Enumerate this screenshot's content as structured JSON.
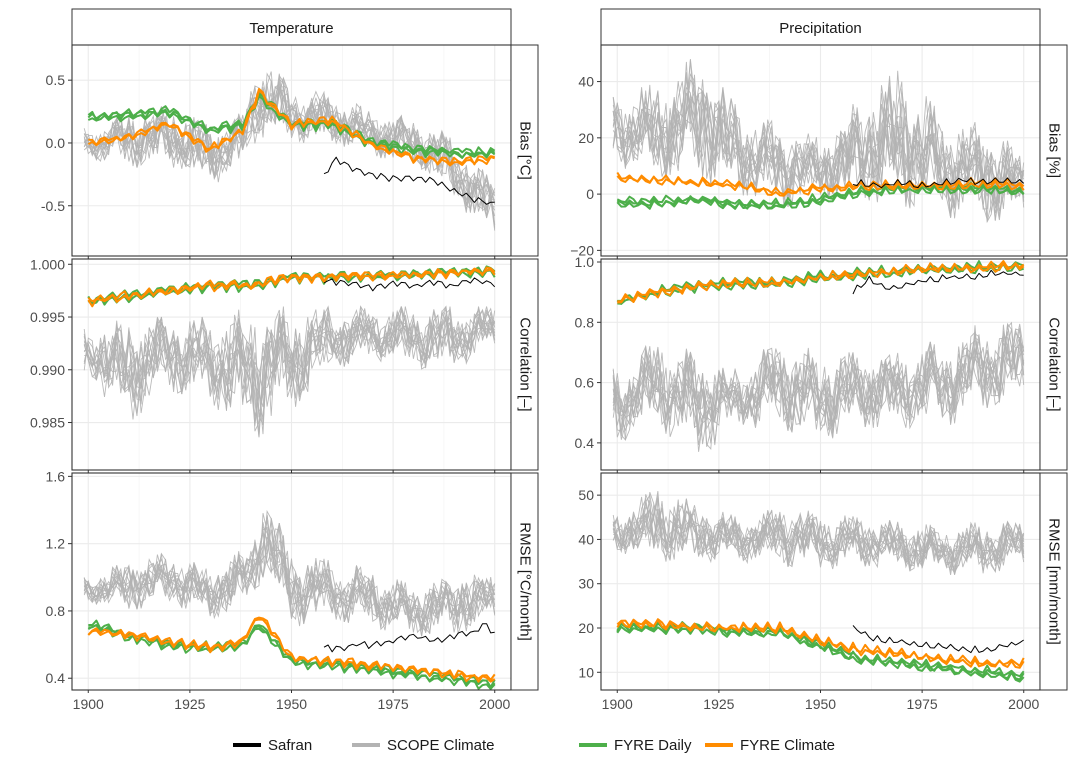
{
  "chart_data": {
    "type": "line",
    "x_ticks": [
      1900,
      1925,
      1950,
      1975,
      2000
    ],
    "x_range": [
      1896,
      2004
    ],
    "column_titles": [
      "Temperature",
      "Precipitation"
    ],
    "legend": {
      "placement": "bottom",
      "entries": [
        {
          "name": "Safran",
          "color": "#000000"
        },
        {
          "name": "SCOPE Climate",
          "color": "#b3b3b3"
        },
        {
          "name": "FYRE Daily",
          "color": "#4daf4a"
        },
        {
          "name": "FYRE Climate",
          "color": "#ff8c00"
        }
      ]
    },
    "grid": true,
    "panels": [
      {
        "column": "Temperature",
        "metric": "Bias [°C]",
        "ylim": [
          -0.9,
          0.78
        ],
        "y_ticks": [
          "0.5",
          "0.0",
          "-0.5"
        ],
        "y_tick_values": [
          0.5,
          0.0,
          -0.5
        ],
        "series": [
          {
            "name": "SCOPE Climate",
            "x": [
              1900,
              1910,
              1920,
              1930,
              1938,
              1942,
              1950,
              1960,
              1970,
              1980,
              1990,
              2000
            ],
            "lower": [
              -0.12,
              -0.2,
              -0.18,
              -0.35,
              -0.2,
              0.05,
              0.0,
              0.0,
              -0.1,
              -0.2,
              -0.45,
              -0.8
            ],
            "upper": [
              0.12,
              0.25,
              0.3,
              0.15,
              0.25,
              0.72,
              0.45,
              0.4,
              0.25,
              0.2,
              0.05,
              -0.3
            ]
          },
          {
            "name": "FYRE Daily",
            "x": [
              1900,
              1910,
              1920,
              1930,
              1938,
              1942,
              1950,
              1960,
              1970,
              1980,
              1990,
              2000
            ],
            "y": [
              0.2,
              0.22,
              0.25,
              0.1,
              0.15,
              0.38,
              0.15,
              0.15,
              0.0,
              -0.05,
              -0.08,
              -0.08
            ]
          },
          {
            "name": "FYRE Climate",
            "x": [
              1900,
              1910,
              1920,
              1930,
              1938,
              1942,
              1950,
              1960,
              1970,
              1980,
              1990,
              2000
            ],
            "y": [
              0.0,
              0.05,
              0.15,
              -0.05,
              0.1,
              0.4,
              0.15,
              0.18,
              -0.02,
              -0.12,
              -0.15,
              -0.13
            ]
          },
          {
            "name": "Safran",
            "x": [
              1958,
              1961,
              1965,
              1970,
              1975,
              1980,
              1985,
              1990,
              1995,
              2000
            ],
            "y": [
              -0.25,
              -0.12,
              -0.2,
              -0.25,
              -0.28,
              -0.28,
              -0.3,
              -0.38,
              -0.45,
              -0.48
            ]
          }
        ]
      },
      {
        "column": "Precipitation",
        "metric": "Bias [%]",
        "ylim": [
          -22,
          53
        ],
        "y_ticks": [
          "40",
          "20",
          "0",
          "−20"
        ],
        "y_tick_values": [
          40,
          20,
          0,
          -20
        ],
        "series": [
          {
            "name": "SCOPE Climate",
            "x": [
              1900,
              1910,
              1920,
              1930,
              1940,
              1950,
              1960,
              1970,
              1980,
              1990,
              2000
            ],
            "lower": [
              10,
              5,
              5,
              0,
              -5,
              -3,
              -5,
              -5,
              -8,
              -10,
              -8
            ],
            "upper": [
              35,
              40,
              50,
              30,
              25,
              20,
              35,
              45,
              28,
              25,
              15
            ]
          },
          {
            "name": "FYRE Daily",
            "x": [
              1900,
              1910,
              1920,
              1930,
              1940,
              1950,
              1960,
              1970,
              1980,
              1990,
              2000
            ],
            "y": [
              -3,
              -3,
              -2,
              -4,
              -4,
              -2,
              1,
              2,
              2,
              2,
              1
            ]
          },
          {
            "name": "FYRE Climate",
            "x": [
              1900,
              1910,
              1920,
              1930,
              1940,
              1950,
              1960,
              1970,
              1980,
              1990,
              2000
            ],
            "y": [
              6,
              5,
              4,
              3,
              0,
              2,
              3,
              3,
              3,
              4,
              3
            ]
          },
          {
            "name": "Safran",
            "x": [
              1958,
              1965,
              1970,
              1975,
              1980,
              1985,
              1990,
              1995,
              2000
            ],
            "y": [
              4,
              3,
              4,
              3,
              4,
              5,
              4,
              5,
              4
            ]
          }
        ]
      },
      {
        "column": "Temperature",
        "metric": "Correlation [–]",
        "ylim": [
          0.9805,
          1.0005
        ],
        "y_ticks": [
          "1.000",
          "0.995",
          "0.990",
          "0.985"
        ],
        "y_tick_values": [
          1.0,
          0.995,
          0.99,
          0.985
        ],
        "series": [
          {
            "name": "SCOPE Climate",
            "x": [
              1900,
              1910,
              1920,
              1930,
              1940,
              1950,
              1960,
              1970,
              1980,
              1990,
              2000
            ],
            "lower": [
              0.989,
              0.985,
              0.988,
              0.987,
              0.983,
              0.986,
              0.99,
              0.991,
              0.99,
              0.99,
              0.992
            ],
            "upper": [
              0.994,
              0.995,
              0.995,
              0.995,
              0.996,
              0.996,
              0.996,
              0.996,
              0.996,
              0.996,
              0.996
            ]
          },
          {
            "name": "FYRE Daily",
            "x": [
              1900,
              1910,
              1920,
              1930,
              1940,
              1950,
              1960,
              1970,
              1980,
              1990,
              2000
            ],
            "y": [
              0.9965,
              0.997,
              0.9975,
              0.998,
              0.998,
              0.9988,
              0.9988,
              0.9989,
              0.999,
              0.9992,
              0.9994
            ]
          },
          {
            "name": "FYRE Climate",
            "x": [
              1900,
              1910,
              1920,
              1930,
              1940,
              1950,
              1960,
              1970,
              1980,
              1990,
              2000
            ],
            "y": [
              0.9965,
              0.997,
              0.9975,
              0.998,
              0.998,
              0.9988,
              0.9988,
              0.9989,
              0.999,
              0.9992,
              0.9994
            ]
          },
          {
            "name": "Safran",
            "x": [
              1958,
              1965,
              1970,
              1975,
              1980,
              1985,
              1990,
              1995,
              2000
            ],
            "y": [
              0.9985,
              0.9982,
              0.9978,
              0.9982,
              0.998,
              0.9983,
              0.998,
              0.9985,
              0.9982
            ]
          }
        ]
      },
      {
        "column": "Precipitation",
        "metric": "Correlation [–]",
        "ylim": [
          0.31,
          1.01
        ],
        "y_ticks": [
          "1.0",
          "0.8",
          "0.6",
          "0.4"
        ],
        "y_tick_values": [
          1.0,
          0.8,
          0.6,
          0.4
        ],
        "series": [
          {
            "name": "SCOPE Climate",
            "x": [
              1900,
              1910,
              1920,
              1930,
              1940,
              1950,
              1960,
              1970,
              1980,
              1990,
              2000
            ],
            "lower": [
              0.4,
              0.45,
              0.35,
              0.45,
              0.45,
              0.4,
              0.45,
              0.45,
              0.45,
              0.5,
              0.55
            ],
            "upper": [
              0.65,
              0.75,
              0.7,
              0.65,
              0.75,
              0.7,
              0.7,
              0.7,
              0.75,
              0.8,
              0.8
            ]
          },
          {
            "name": "FYRE Daily",
            "x": [
              1900,
              1910,
              1920,
              1930,
              1940,
              1950,
              1960,
              1970,
              1980,
              1990,
              2000
            ],
            "y": [
              0.87,
              0.9,
              0.92,
              0.93,
              0.93,
              0.95,
              0.96,
              0.97,
              0.98,
              0.98,
              0.99
            ]
          },
          {
            "name": "FYRE Climate",
            "x": [
              1900,
              1910,
              1920,
              1930,
              1940,
              1950,
              1960,
              1970,
              1980,
              1990,
              2000
            ],
            "y": [
              0.87,
              0.9,
              0.92,
              0.93,
              0.93,
              0.95,
              0.96,
              0.97,
              0.98,
              0.98,
              0.99
            ]
          },
          {
            "name": "Safran",
            "x": [
              1958,
              1962,
              1967,
              1972,
              1977,
              1982,
              1987,
              1992,
              1997,
              2000
            ],
            "y": [
              0.9,
              0.94,
              0.91,
              0.93,
              0.94,
              0.95,
              0.95,
              0.96,
              0.96,
              0.96
            ]
          }
        ]
      },
      {
        "column": "Temperature",
        "metric": "RMSE [°C/month]",
        "ylim": [
          0.33,
          1.62
        ],
        "y_ticks": [
          "1.6",
          "1.2",
          "0.8",
          "0.4"
        ],
        "y_tick_values": [
          1.6,
          1.2,
          0.8,
          0.4
        ],
        "series": [
          {
            "name": "SCOPE Climate",
            "x": [
              1900,
              1910,
              1920,
              1930,
              1940,
              1943,
              1950,
              1960,
              1970,
              1980,
              1990,
              2000
            ],
            "lower": [
              0.85,
              0.8,
              0.85,
              0.75,
              0.85,
              1.0,
              0.7,
              0.75,
              0.7,
              0.65,
              0.65,
              0.75
            ],
            "upper": [
              1.0,
              1.1,
              1.15,
              1.05,
              1.2,
              1.55,
              1.15,
              1.1,
              1.05,
              0.95,
              1.05,
              1.0
            ]
          },
          {
            "name": "FYRE Daily",
            "x": [
              1900,
              1910,
              1920,
              1930,
              1938,
              1942,
              1950,
              1960,
              1970,
              1980,
              1990,
              2000
            ],
            "y": [
              0.72,
              0.65,
              0.6,
              0.58,
              0.6,
              0.72,
              0.5,
              0.48,
              0.46,
              0.42,
              0.4,
              0.36
            ]
          },
          {
            "name": "FYRE Climate",
            "x": [
              1900,
              1910,
              1920,
              1930,
              1938,
              1942,
              1950,
              1960,
              1970,
              1980,
              1990,
              2000
            ],
            "y": [
              0.68,
              0.66,
              0.62,
              0.58,
              0.62,
              0.78,
              0.52,
              0.5,
              0.48,
              0.45,
              0.42,
              0.4
            ]
          },
          {
            "name": "Safran",
            "x": [
              1958,
              1962,
              1966,
              1970,
              1975,
              1980,
              1985,
              1990,
              1995,
              1998,
              2000
            ],
            "y": [
              0.58,
              0.58,
              0.6,
              0.6,
              0.62,
              0.65,
              0.62,
              0.65,
              0.68,
              0.72,
              0.66
            ]
          }
        ]
      },
      {
        "column": "Precipitation",
        "metric": "RMSE [mm/month]",
        "ylim": [
          6,
          55
        ],
        "y_ticks": [
          "50",
          "40",
          "30",
          "20",
          "10"
        ],
        "y_tick_values": [
          50,
          40,
          30,
          20,
          10
        ],
        "series": [
          {
            "name": "SCOPE Climate",
            "x": [
              1900,
              1910,
              1920,
              1930,
              1940,
              1950,
              1960,
              1970,
              1980,
              1990,
              2000
            ],
            "lower": [
              36,
              35,
              35,
              35,
              34,
              33,
              34,
              33,
              32,
              32,
              34
            ],
            "upper": [
              46,
              52,
              48,
              45,
              48,
              46,
              45,
              44,
              43,
              44,
              44
            ]
          },
          {
            "name": "FYRE Daily",
            "x": [
              1900,
              1910,
              1920,
              1930,
              1940,
              1950,
              1960,
              1970,
              1980,
              1990,
              2000
            ],
            "y": [
              20,
              20,
              20,
              19,
              19,
              16,
              13,
              12,
              11,
              10,
              9
            ]
          },
          {
            "name": "FYRE Climate",
            "x": [
              1900,
              1910,
              1920,
              1930,
              1940,
              1950,
              1960,
              1970,
              1980,
              1990,
              2000
            ],
            "y": [
              21,
              21,
              20,
              20,
              20,
              17,
              15,
              14,
              13,
              12,
              12
            ]
          },
          {
            "name": "Safran",
            "x": [
              1958,
              1962,
              1966,
              1970,
              1975,
              1980,
              1985,
              1990,
              1995,
              2000
            ],
            "y": [
              20,
              18,
              17,
              17,
              16,
              16,
              15,
              15,
              16,
              17
            ]
          }
        ]
      }
    ]
  }
}
